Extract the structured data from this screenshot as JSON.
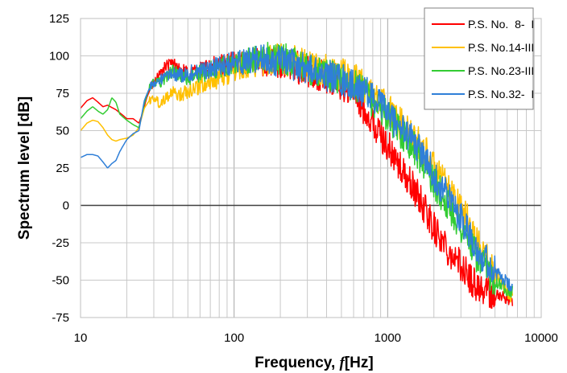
{
  "chart_data": {
    "type": "line",
    "xlabel": "Frequency, ",
    "xlabel_symbol": "f",
    "xlabel_unit": "[Hz]",
    "ylabel": "Spectrum level [dB]",
    "x_scale": "log",
    "xlim": [
      10,
      10000
    ],
    "ylim": [
      -75,
      125
    ],
    "x_ticks": [
      "10",
      "100",
      "1000",
      "10000"
    ],
    "y_ticks": [
      "125",
      "100",
      "75",
      "50",
      "25",
      "0",
      "-25",
      "-50",
      "-75"
    ],
    "grid": true,
    "legend_position": "top-right",
    "series": [
      {
        "name": "P.S. No.  8-  I",
        "color": "#ff0000",
        "points": [
          [
            10,
            65
          ],
          [
            11,
            70
          ],
          [
            12,
            72
          ],
          [
            13,
            69
          ],
          [
            14,
            66
          ],
          [
            15,
            67
          ],
          [
            17,
            64
          ],
          [
            19,
            60
          ],
          [
            20,
            58
          ],
          [
            22,
            58
          ],
          [
            24,
            55
          ],
          [
            25,
            60
          ],
          [
            27,
            72
          ],
          [
            29,
            80
          ],
          [
            31,
            85
          ],
          [
            33,
            88
          ],
          [
            35,
            92
          ],
          [
            37,
            94
          ],
          [
            40,
            95
          ],
          [
            45,
            90
          ],
          [
            50,
            88
          ],
          [
            60,
            90
          ],
          [
            70,
            92
          ],
          [
            80,
            94
          ],
          [
            100,
            95
          ],
          [
            130,
            97
          ],
          [
            160,
            96
          ],
          [
            200,
            95
          ],
          [
            250,
            93
          ],
          [
            300,
            90
          ],
          [
            400,
            85
          ],
          [
            500,
            80
          ],
          [
            600,
            75
          ],
          [
            700,
            65
          ],
          [
            800,
            55
          ],
          [
            1000,
            40
          ],
          [
            1200,
            25
          ],
          [
            1500,
            10
          ],
          [
            1800,
            -5
          ],
          [
            2000,
            -15
          ],
          [
            2500,
            -30
          ],
          [
            3000,
            -40
          ],
          [
            3500,
            -50
          ],
          [
            4000,
            -55
          ],
          [
            5000,
            -60
          ],
          [
            6000,
            -62
          ],
          [
            6500,
            -64
          ]
        ]
      },
      {
        "name": "P.S. No.14-III",
        "color": "#ffc000",
        "points": [
          [
            10,
            50
          ],
          [
            11,
            55
          ],
          [
            12,
            57
          ],
          [
            13,
            56
          ],
          [
            14,
            52
          ],
          [
            15,
            47
          ],
          [
            16,
            44
          ],
          [
            17,
            43
          ],
          [
            18,
            44
          ],
          [
            20,
            45
          ],
          [
            22,
            47
          ],
          [
            24,
            52
          ],
          [
            26,
            65
          ],
          [
            28,
            70
          ],
          [
            30,
            72
          ],
          [
            33,
            68
          ],
          [
            36,
            73
          ],
          [
            40,
            75
          ],
          [
            45,
            74
          ],
          [
            50,
            77
          ],
          [
            60,
            80
          ],
          [
            70,
            83
          ],
          [
            80,
            85
          ],
          [
            100,
            90
          ],
          [
            130,
            94
          ],
          [
            160,
            97
          ],
          [
            200,
            98
          ],
          [
            250,
            96
          ],
          [
            300,
            94
          ],
          [
            400,
            90
          ],
          [
            500,
            88
          ],
          [
            600,
            85
          ],
          [
            700,
            80
          ],
          [
            800,
            75
          ],
          [
            1000,
            65
          ],
          [
            1200,
            55
          ],
          [
            1500,
            45
          ],
          [
            1800,
            35
          ],
          [
            2000,
            25
          ],
          [
            2500,
            10
          ],
          [
            3000,
            0
          ],
          [
            3500,
            -15
          ],
          [
            4000,
            -30
          ],
          [
            5000,
            -45
          ],
          [
            6000,
            -58
          ],
          [
            6500,
            -62
          ]
        ]
      },
      {
        "name": "P.S. No.23-III",
        "color": "#33cc33",
        "points": [
          [
            10,
            58
          ],
          [
            11,
            63
          ],
          [
            12,
            66
          ],
          [
            13,
            63
          ],
          [
            14,
            61
          ],
          [
            15,
            64
          ],
          [
            16,
            72
          ],
          [
            17,
            69
          ],
          [
            18,
            61
          ],
          [
            20,
            57
          ],
          [
            22,
            54
          ],
          [
            24,
            52
          ],
          [
            26,
            68
          ],
          [
            28,
            78
          ],
          [
            30,
            84
          ],
          [
            33,
            82
          ],
          [
            36,
            86
          ],
          [
            40,
            90
          ],
          [
            45,
            87
          ],
          [
            50,
            85
          ],
          [
            60,
            88
          ],
          [
            70,
            90
          ],
          [
            80,
            92
          ],
          [
            100,
            95
          ],
          [
            130,
            97
          ],
          [
            160,
            100
          ],
          [
            200,
            98
          ],
          [
            250,
            96
          ],
          [
            300,
            92
          ],
          [
            400,
            88
          ],
          [
            500,
            84
          ],
          [
            600,
            80
          ],
          [
            700,
            75
          ],
          [
            800,
            70
          ],
          [
            1000,
            60
          ],
          [
            1200,
            50
          ],
          [
            1500,
            38
          ],
          [
            1800,
            25
          ],
          [
            2000,
            15
          ],
          [
            2500,
            0
          ],
          [
            3000,
            -15
          ],
          [
            3500,
            -28
          ],
          [
            4000,
            -38
          ],
          [
            5000,
            -50
          ],
          [
            6000,
            -56
          ],
          [
            6500,
            -58
          ]
        ]
      },
      {
        "name": "P.S. No.32-  I",
        "color": "#2f7fd8",
        "points": [
          [
            10,
            32
          ],
          [
            11,
            34
          ],
          [
            12,
            34
          ],
          [
            13,
            33
          ],
          [
            14,
            29
          ],
          [
            15,
            25
          ],
          [
            16,
            28
          ],
          [
            17,
            30
          ],
          [
            18,
            36
          ],
          [
            20,
            44
          ],
          [
            22,
            48
          ],
          [
            24,
            50
          ],
          [
            26,
            70
          ],
          [
            28,
            78
          ],
          [
            30,
            82
          ],
          [
            33,
            84
          ],
          [
            36,
            86
          ],
          [
            40,
            88
          ],
          [
            45,
            87
          ],
          [
            50,
            88
          ],
          [
            60,
            90
          ],
          [
            70,
            91
          ],
          [
            80,
            93
          ],
          [
            100,
            95
          ],
          [
            130,
            97
          ],
          [
            160,
            98
          ],
          [
            200,
            96
          ],
          [
            250,
            94
          ],
          [
            300,
            91
          ],
          [
            400,
            87
          ],
          [
            500,
            84
          ],
          [
            600,
            80
          ],
          [
            700,
            76
          ],
          [
            800,
            72
          ],
          [
            1000,
            62
          ],
          [
            1200,
            52
          ],
          [
            1500,
            42
          ],
          [
            1800,
            30
          ],
          [
            2000,
            20
          ],
          [
            2500,
            5
          ],
          [
            3000,
            -8
          ],
          [
            3500,
            -20
          ],
          [
            4000,
            -32
          ],
          [
            5000,
            -44
          ],
          [
            6000,
            -52
          ],
          [
            6500,
            -56
          ]
        ]
      }
    ]
  }
}
